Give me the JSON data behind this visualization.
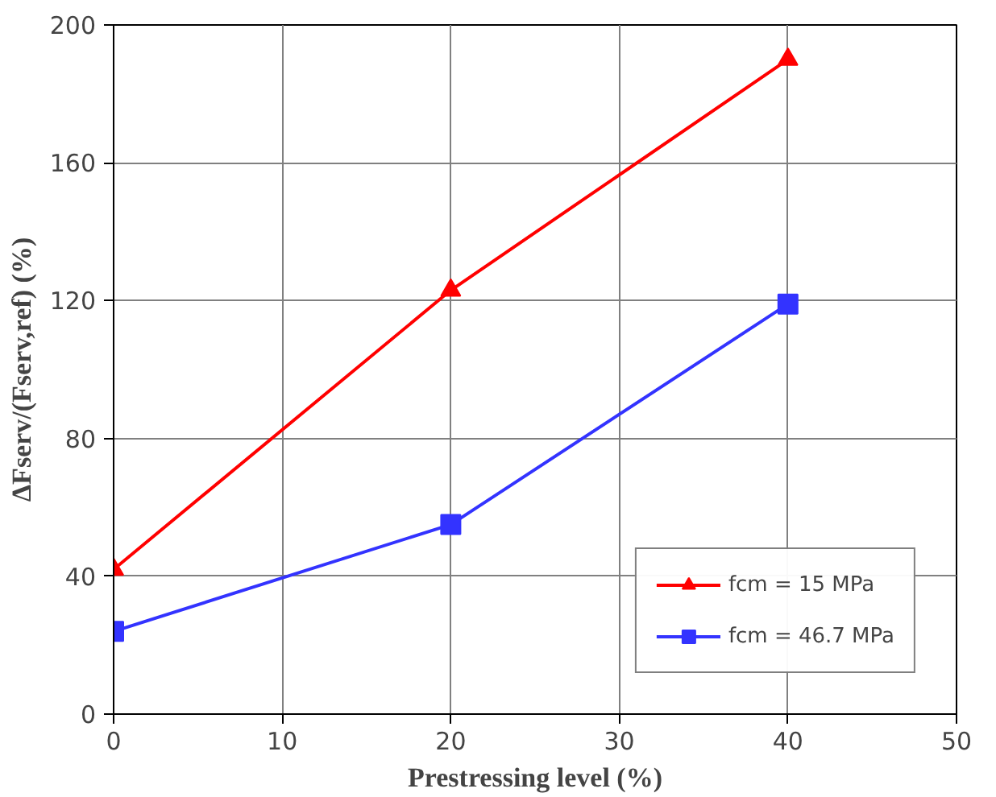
{
  "chart_data": {
    "type": "line",
    "xlabel": "Prestressing level (%)",
    "ylabel": "ΔFserv/(Fserv,ref) (%)",
    "x": [
      0,
      20,
      40
    ],
    "series": [
      {
        "name": "fcm = 15 MPa",
        "color": "#ff0000",
        "marker": "triangle",
        "values": [
          42,
          123,
          190
        ]
      },
      {
        "name": "fcm = 46.7 MPa",
        "color": "#3333ff",
        "marker": "square",
        "values": [
          24,
          55,
          119
        ]
      }
    ],
    "xlim": [
      0,
      50
    ],
    "xticks": [
      0,
      10,
      20,
      30,
      40,
      50
    ],
    "ylim": [
      0,
      200
    ],
    "yticks": [
      0,
      40,
      80,
      120,
      160,
      200
    ],
    "grid": true,
    "legend": "bottom right",
    "line_style": "solid"
  }
}
